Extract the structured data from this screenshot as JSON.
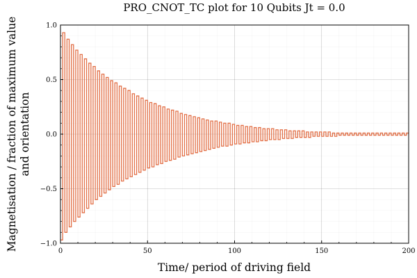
{
  "chart_data": {
    "type": "line",
    "title": "PRO_CNOT_TC plot for 10 Qubits Jt = 0.0",
    "xlabel": "Time/ period of driving field",
    "ylabel_lines": [
      "Magnetisation / fraction of maximum value",
      "and orientation"
    ],
    "xlim": [
      0,
      200
    ],
    "ylim": [
      -1.0,
      1.0
    ],
    "xticks": [
      0,
      50,
      100,
      150,
      200
    ],
    "xtick_labels": [
      "0",
      "50",
      "100",
      "150",
      "200"
    ],
    "yticks": [
      -1.0,
      -0.5,
      0.0,
      0.5,
      1.0
    ],
    "ytick_labels": [
      "−1.0",
      "−0.5",
      "0.0",
      "0.5",
      "1.0"
    ],
    "grid": true,
    "minor_grid": true,
    "legend": "none",
    "line_style": "steps",
    "series": [
      {
        "color": "#e26f46",
        "period": 2.5,
        "positive_peaks_t": [
          1.25,
          3.75,
          6.25,
          8.75,
          11.25,
          13.75,
          16.25,
          18.75,
          21.25,
          23.75,
          26.25,
          28.75,
          31.25,
          33.75,
          36.25,
          38.75,
          41.25,
          43.75,
          46.25,
          48.75,
          51.25,
          53.75,
          56.25,
          58.75,
          61.25,
          63.75,
          66.25,
          68.75,
          71.25,
          73.75,
          76.25,
          78.75,
          81.25,
          83.75,
          86.25,
          88.75,
          91.25,
          93.75,
          96.25,
          98.75,
          101.25,
          103.75,
          106.25,
          108.75,
          111.25,
          113.75,
          116.25,
          118.75,
          121.25,
          123.75,
          126.25,
          128.75,
          131.25,
          133.75,
          136.25,
          138.75,
          141.25,
          143.75,
          146.25,
          148.75,
          151.25,
          153.75,
          156.25,
          158.75,
          161.25,
          163.75,
          166.25,
          168.75,
          171.25,
          173.75,
          176.25,
          178.75,
          181.25,
          183.75,
          186.25,
          188.75,
          191.25,
          193.75,
          196.25,
          198.75
        ],
        "positive_peaks_y": [
          0.93,
          0.87,
          0.82,
          0.77,
          0.73,
          0.69,
          0.65,
          0.62,
          0.58,
          0.55,
          0.52,
          0.49,
          0.47,
          0.44,
          0.42,
          0.4,
          0.37,
          0.35,
          0.33,
          0.31,
          0.29,
          0.28,
          0.26,
          0.25,
          0.23,
          0.22,
          0.21,
          0.19,
          0.18,
          0.17,
          0.16,
          0.15,
          0.14,
          0.13,
          0.12,
          0.12,
          0.11,
          0.1,
          0.1,
          0.09,
          0.08,
          0.08,
          0.07,
          0.07,
          0.06,
          0.06,
          0.05,
          0.05,
          0.05,
          0.04,
          0.04,
          0.04,
          0.03,
          0.03,
          0.03,
          0.03,
          0.02,
          0.02,
          0.02,
          0.02,
          0.02,
          0.02,
          0.01,
          0.01,
          0.01,
          0.01,
          0.01,
          0.01,
          0.01,
          0.01,
          0.01,
          0.01,
          0.01,
          0.01,
          0.01,
          0.01,
          0.01,
          0.01,
          0.01,
          0.01
        ],
        "negative_troughs_t": [
          0.0,
          2.5,
          5.0,
          7.5,
          10.0,
          12.5,
          15.0,
          17.5,
          20.0,
          22.5,
          25.0,
          27.5,
          30.0,
          32.5,
          35.0,
          37.5,
          40.0,
          42.5,
          45.0,
          47.5,
          50.0,
          52.5,
          55.0,
          57.5,
          60.0,
          62.5,
          65.0,
          67.5,
          70.0,
          72.5,
          75.0,
          77.5,
          80.0,
          82.5,
          85.0,
          87.5,
          90.0,
          92.5,
          95.0,
          97.5,
          100.0,
          102.5,
          105.0,
          107.5,
          110.0,
          112.5,
          115.0,
          117.5,
          120.0,
          122.5,
          125.0,
          127.5,
          130.0,
          132.5,
          135.0,
          137.5,
          140.0,
          142.5,
          145.0,
          147.5,
          150.0,
          152.5,
          155.0,
          157.5,
          160.0,
          162.5,
          165.0,
          167.5,
          170.0,
          172.5,
          175.0,
          177.5,
          180.0,
          182.5,
          185.0,
          187.5,
          190.0,
          192.5,
          195.0,
          197.5
        ],
        "negative_troughs_y": [
          -0.97,
          -0.9,
          -0.85,
          -0.8,
          -0.76,
          -0.72,
          -0.68,
          -0.64,
          -0.6,
          -0.57,
          -0.54,
          -0.51,
          -0.48,
          -0.46,
          -0.43,
          -0.41,
          -0.39,
          -0.37,
          -0.35,
          -0.33,
          -0.31,
          -0.3,
          -0.28,
          -0.27,
          -0.25,
          -0.24,
          -0.23,
          -0.21,
          -0.2,
          -0.19,
          -0.18,
          -0.17,
          -0.16,
          -0.15,
          -0.14,
          -0.13,
          -0.12,
          -0.11,
          -0.11,
          -0.1,
          -0.09,
          -0.09,
          -0.08,
          -0.08,
          -0.07,
          -0.07,
          -0.06,
          -0.06,
          -0.05,
          -0.05,
          -0.05,
          -0.04,
          -0.04,
          -0.04,
          -0.03,
          -0.03,
          -0.03,
          -0.03,
          -0.02,
          -0.02,
          -0.02,
          -0.02,
          -0.02,
          -0.02,
          -0.01,
          -0.01,
          -0.01,
          -0.01,
          -0.01,
          -0.01,
          -0.01,
          -0.01,
          -0.01,
          -0.01,
          -0.01,
          -0.01,
          -0.01,
          -0.01,
          -0.01,
          -0.01
        ]
      }
    ]
  }
}
